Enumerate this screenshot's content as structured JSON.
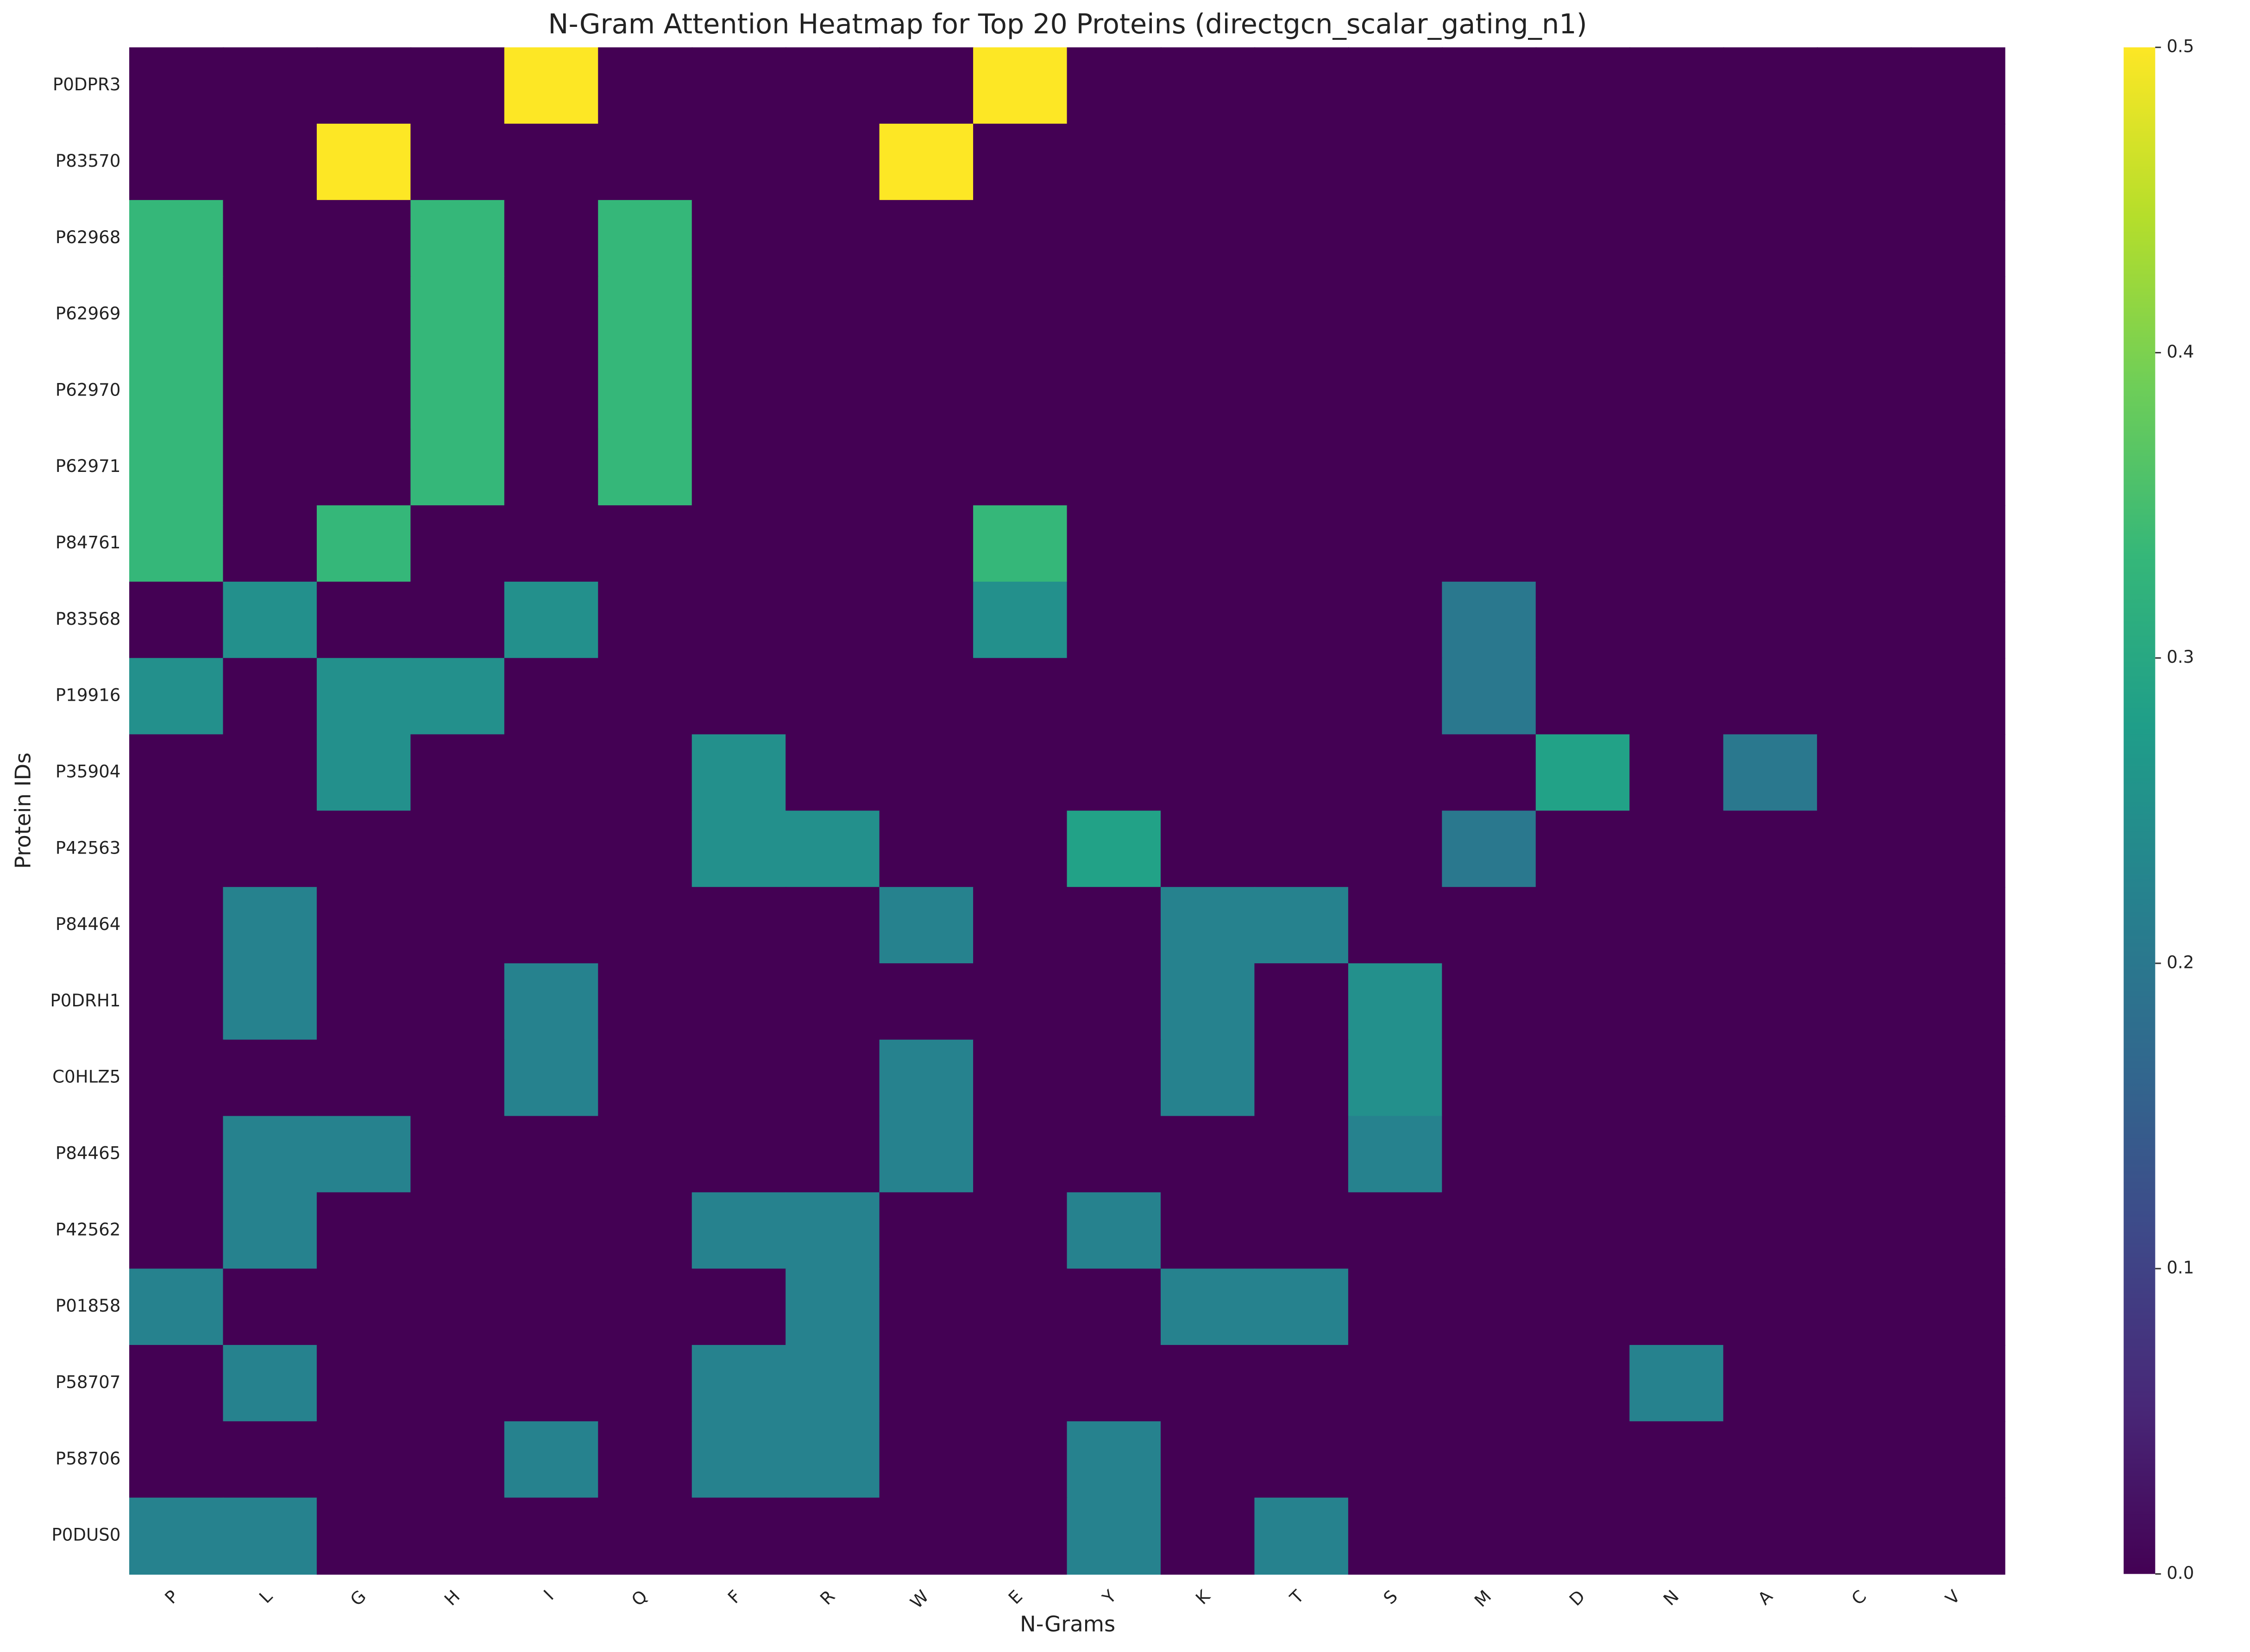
{
  "chart_data": {
    "type": "heatmap",
    "title": "N-Gram Attention Heatmap for Top 20 Proteins (directgcn_scalar_gating_n1)",
    "xlabel": "N-Grams",
    "ylabel": "Protein IDs",
    "x_categories": [
      "P",
      "L",
      "G",
      "H",
      "I",
      "Q",
      "F",
      "R",
      "W",
      "E",
      "Y",
      "K",
      "T",
      "S",
      "M",
      "D",
      "N",
      "A",
      "C",
      "V"
    ],
    "y_categories": [
      "P0DPR3",
      "P83570",
      "P62968",
      "P62969",
      "P62970",
      "P62971",
      "P84761",
      "P83568",
      "P19916",
      "P35904",
      "P42563",
      "P84464",
      "P0DRH1",
      "C0HLZ5",
      "P84465",
      "P42562",
      "P01858",
      "P58707",
      "P58706",
      "P0DUS0"
    ],
    "values": [
      [
        0,
        0,
        0,
        0,
        0.5,
        0,
        0,
        0,
        0,
        0.5,
        0,
        0,
        0,
        0,
        0,
        0,
        0,
        0,
        0,
        0
      ],
      [
        0,
        0,
        0.5,
        0,
        0,
        0,
        0,
        0,
        0.5,
        0,
        0,
        0,
        0,
        0,
        0,
        0,
        0,
        0,
        0,
        0
      ],
      [
        0.333,
        0,
        0,
        0.333,
        0,
        0.333,
        0,
        0,
        0,
        0,
        0,
        0,
        0,
        0,
        0,
        0,
        0,
        0,
        0,
        0
      ],
      [
        0.333,
        0,
        0,
        0.333,
        0,
        0.333,
        0,
        0,
        0,
        0,
        0,
        0,
        0,
        0,
        0,
        0,
        0,
        0,
        0,
        0
      ],
      [
        0.333,
        0,
        0,
        0.333,
        0,
        0.333,
        0,
        0,
        0,
        0,
        0,
        0,
        0,
        0,
        0,
        0,
        0,
        0,
        0,
        0
      ],
      [
        0.333,
        0,
        0,
        0.333,
        0,
        0.333,
        0,
        0,
        0,
        0,
        0,
        0,
        0,
        0,
        0,
        0,
        0,
        0,
        0,
        0
      ],
      [
        0.333,
        0,
        0.333,
        0,
        0,
        0,
        0,
        0,
        0,
        0.333,
        0,
        0,
        0,
        0,
        0,
        0,
        0,
        0,
        0,
        0
      ],
      [
        0,
        0.25,
        0,
        0,
        0.25,
        0,
        0,
        0,
        0,
        0.25,
        0,
        0,
        0,
        0,
        0.2,
        0,
        0,
        0,
        0,
        0
      ],
      [
        0.25,
        0,
        0.25,
        0.25,
        0,
        0,
        0,
        0,
        0,
        0,
        0,
        0,
        0,
        0,
        0.2,
        0,
        0,
        0,
        0,
        0
      ],
      [
        0,
        0,
        0.25,
        0,
        0,
        0,
        0.25,
        0,
        0,
        0,
        0,
        0,
        0,
        0,
        0,
        0.286,
        0,
        0.2,
        0,
        0
      ],
      [
        0,
        0,
        0,
        0,
        0,
        0,
        0.25,
        0.25,
        0,
        0,
        0.286,
        0,
        0,
        0,
        0.2,
        0,
        0,
        0,
        0,
        0
      ],
      [
        0,
        0.222,
        0,
        0,
        0,
        0,
        0,
        0,
        0.222,
        0,
        0,
        0.222,
        0.222,
        0,
        0,
        0,
        0,
        0,
        0,
        0
      ],
      [
        0,
        0.222,
        0,
        0,
        0.222,
        0,
        0,
        0,
        0,
        0,
        0,
        0.222,
        0,
        0.25,
        0,
        0,
        0,
        0,
        0,
        0
      ],
      [
        0,
        0,
        0,
        0,
        0.222,
        0,
        0,
        0,
        0.222,
        0,
        0,
        0.222,
        0,
        0.25,
        0,
        0,
        0,
        0,
        0,
        0
      ],
      [
        0,
        0.222,
        0.222,
        0,
        0,
        0,
        0,
        0,
        0.222,
        0,
        0,
        0,
        0,
        0.222,
        0,
        0,
        0,
        0,
        0,
        0
      ],
      [
        0,
        0.222,
        0,
        0,
        0,
        0,
        0.222,
        0.222,
        0,
        0,
        0.222,
        0,
        0,
        0,
        0,
        0,
        0,
        0,
        0,
        0
      ],
      [
        0.222,
        0,
        0,
        0,
        0,
        0,
        0,
        0.222,
        0,
        0,
        0,
        0.222,
        0.222,
        0,
        0,
        0,
        0,
        0,
        0,
        0
      ],
      [
        0,
        0.222,
        0,
        0,
        0,
        0,
        0.222,
        0.222,
        0,
        0,
        0,
        0,
        0,
        0,
        0,
        0,
        0.222,
        0,
        0,
        0
      ],
      [
        0,
        0,
        0,
        0,
        0.222,
        0,
        0.222,
        0.222,
        0,
        0,
        0.222,
        0,
        0,
        0,
        0,
        0,
        0,
        0,
        0,
        0
      ],
      [
        0.222,
        0.222,
        0,
        0,
        0,
        0,
        0,
        0,
        0,
        0,
        0.222,
        0,
        0.222,
        0,
        0,
        0,
        0,
        0,
        0,
        0
      ]
    ],
    "colormap": "viridis",
    "clim": [
      0,
      0.5
    ],
    "cticks": [
      {
        "value": 0,
        "label": "0.0"
      },
      0.1,
      0.2,
      0.3,
      0.4,
      0.5
    ]
  }
}
